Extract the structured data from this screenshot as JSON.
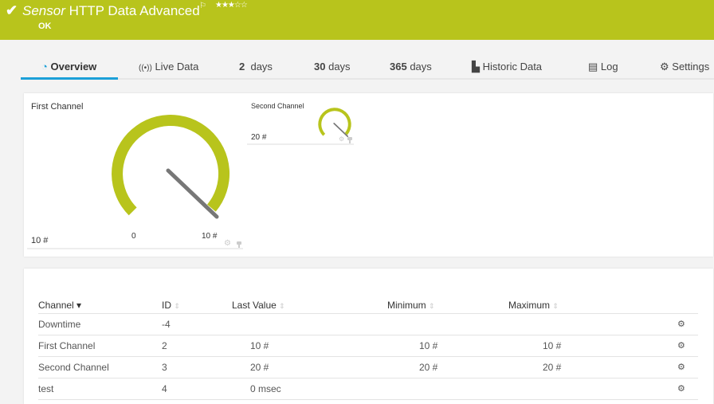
{
  "header": {
    "status_icon": "check-icon",
    "title_prefix": "Sensor",
    "title": "HTTP Data Advanced",
    "flag_icon": "flag-icon",
    "stars": "★★★☆☆",
    "priority": 3,
    "status": "OK",
    "color": "#b8c41c"
  },
  "tabs": [
    {
      "icon": "◔",
      "label": "Overview"
    },
    {
      "icon": "((•))",
      "label": "Live Data"
    },
    {
      "num": "2",
      "label": "days"
    },
    {
      "num": "30",
      "label": "days"
    },
    {
      "num": "365",
      "label": "days"
    },
    {
      "icon": "▙",
      "label": "Historic Data"
    },
    {
      "icon": "▤",
      "label": "Log"
    },
    {
      "icon": "⚙",
      "label": "Settings"
    }
  ],
  "gauges": [
    {
      "name": "First Channel",
      "value_text": "10 #",
      "min_label": "0",
      "max_label": "10 #",
      "value": 10,
      "min": 0,
      "max": 10
    },
    {
      "name": "Second Channel",
      "value_text": "20 #",
      "value": 20,
      "min": 0,
      "max": 20
    }
  ],
  "table": {
    "headers": [
      "Channel",
      "ID",
      "Last Value",
      "Minimum",
      "Maximum"
    ],
    "sort_icon": "▾",
    "rows": [
      {
        "channel": "Downtime",
        "id": "-4",
        "last": "",
        "min": "",
        "max": ""
      },
      {
        "channel": "First Channel",
        "id": "2",
        "last": "10 #",
        "min": "10 #",
        "max": "10 #"
      },
      {
        "channel": "Second Channel",
        "id": "3",
        "last": "20 #",
        "min": "20 #",
        "max": "20 #"
      },
      {
        "channel": "test",
        "id": "4",
        "last": "0 msec",
        "min": "",
        "max": ""
      }
    ]
  }
}
